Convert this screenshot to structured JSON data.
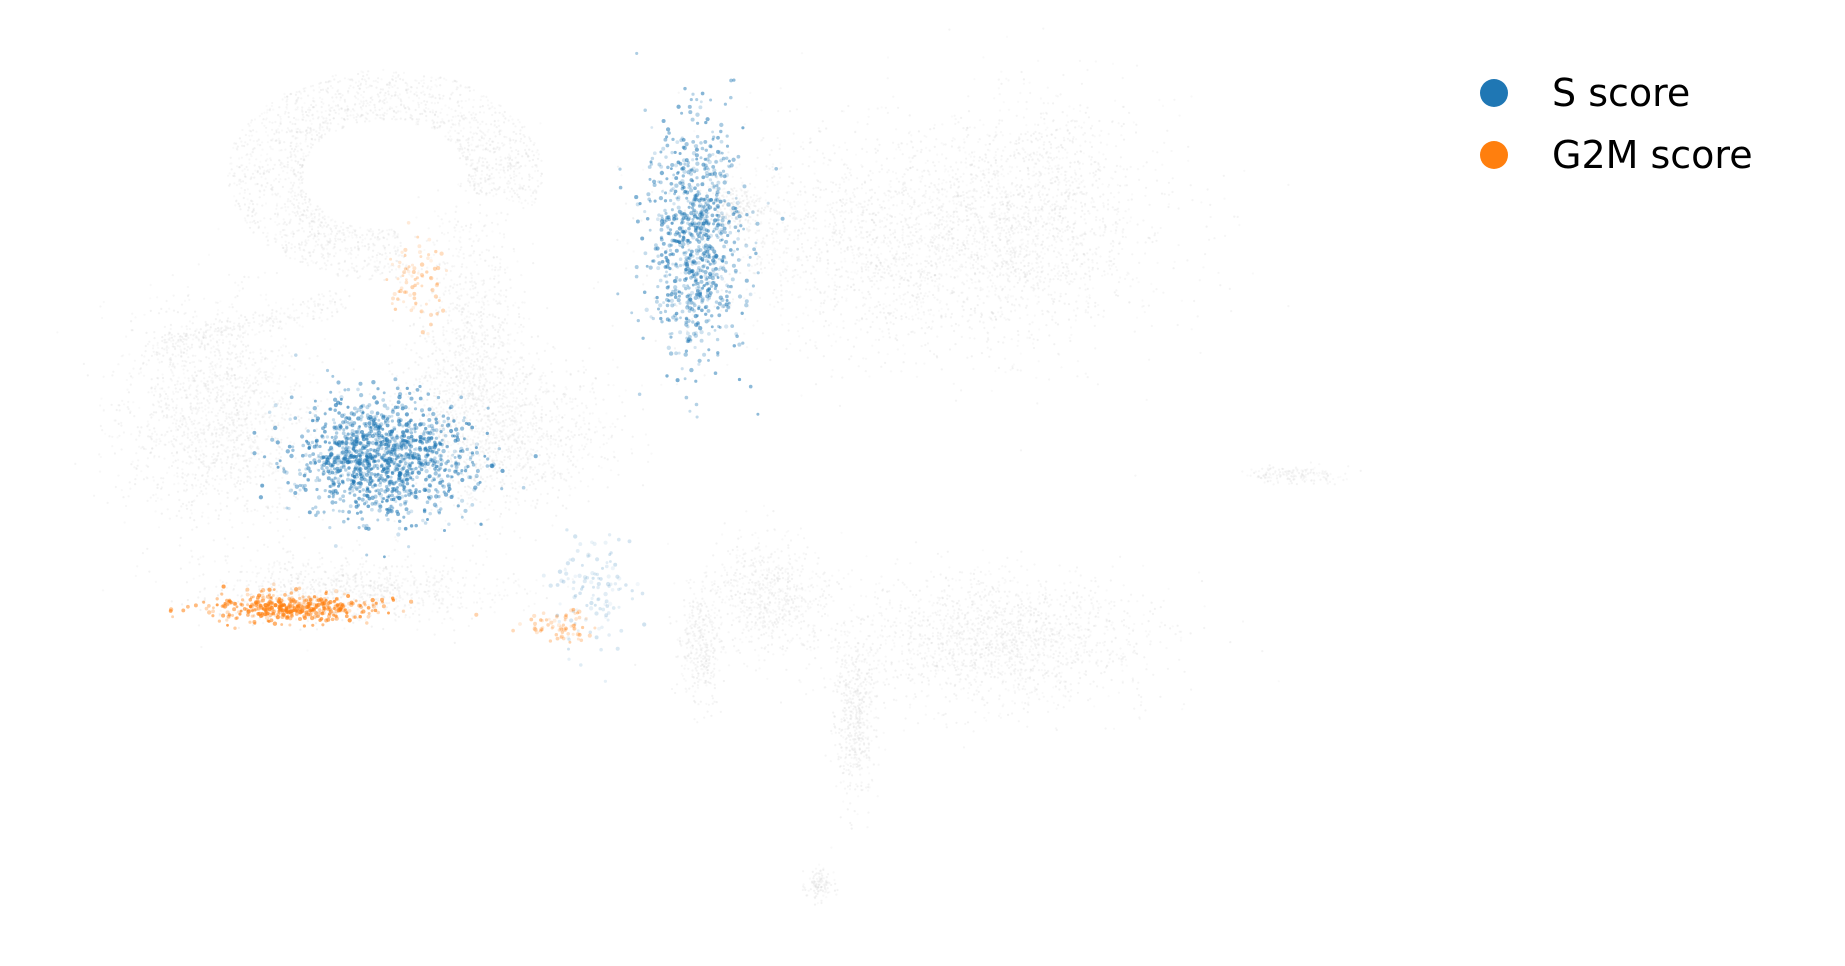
{
  "chart_data": {
    "type": "scatter",
    "title": "",
    "xlabel": "",
    "ylabel": "",
    "axes_visible": false,
    "grid": false,
    "legend_position": "top-right",
    "background_color": "#d3d3d3",
    "xlim": [
      0,
      100
    ],
    "ylim": [
      0,
      100
    ],
    "series": [
      {
        "name": "S score",
        "color": "#1f77b4",
        "regions": [
          {
            "label": "right upper cluster edge",
            "center": [
              54,
              78
            ],
            "spread": [
              4,
              12
            ],
            "count": 900,
            "intensity": 0.7
          },
          {
            "label": "central cluster",
            "center": [
              26,
              53
            ],
            "spread": [
              7,
              6
            ],
            "count": 1300,
            "intensity": 0.75
          },
          {
            "label": "lower middle cluster",
            "center": [
              45,
              38
            ],
            "spread": [
              3,
              6
            ],
            "count": 120,
            "intensity": 0.25
          }
        ]
      },
      {
        "name": "G2M score",
        "color": "#ff7f0e",
        "regions": [
          {
            "label": "lower left arc",
            "center": [
              18,
              36
            ],
            "spread": [
              7,
              1.5
            ],
            "count": 420,
            "intensity": 0.85
          },
          {
            "label": "upper arm",
            "center": [
              29,
              73
            ],
            "spread": [
              2,
              5
            ],
            "count": 80,
            "intensity": 0.4
          },
          {
            "label": "bridge",
            "center": [
              42,
              34
            ],
            "spread": [
              3,
              1.5
            ],
            "count": 70,
            "intensity": 0.5
          }
        ]
      }
    ]
  },
  "legend": {
    "items": [
      {
        "label": "S score",
        "color": "#1f77b4"
      },
      {
        "label": "G2M score",
        "color": "#ff7f0e"
      }
    ]
  }
}
